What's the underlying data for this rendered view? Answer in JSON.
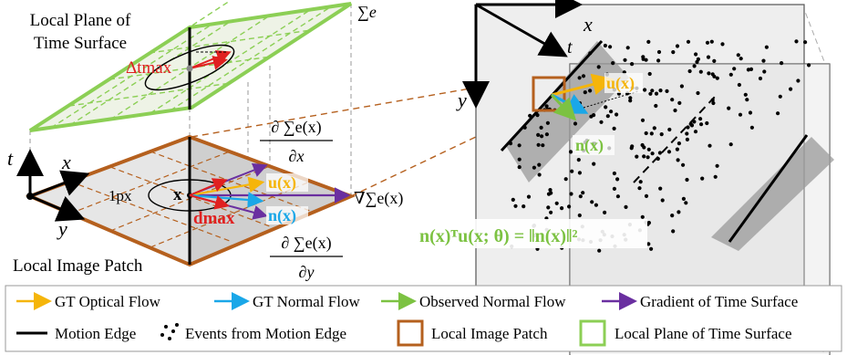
{
  "left_panel": {
    "plane_label_line1": "Local Plane of",
    "plane_label_line2": "Time Surface",
    "sigma_label": "∑e",
    "delta_t_max": "Δtmax",
    "patch_label": "Local Image Patch",
    "axis_t": "t",
    "axis_x": "x",
    "axis_y": "y",
    "one_px": "1px",
    "point_x": "x",
    "d_max": "dmax",
    "u_label": "u(x)",
    "n_label": "n(x)",
    "grad_label": "∇∑e(x)",
    "dsdx_num": "∂ ∑e(x)",
    "dsdx_den": "∂x",
    "dsdy_num": "∂ ∑e(x)",
    "dsdy_den": "∂y"
  },
  "right_panel": {
    "axis_x": "x",
    "axis_y": "y",
    "axis_t": "t",
    "u_label": "u(x)",
    "n_label": "n(x)",
    "equation": "n(x)ᵀu(x; θ) = ‖n(x)‖²"
  },
  "legend": {
    "items": [
      {
        "label": "GT Optical Flow",
        "icon": "orange-arrow-icon"
      },
      {
        "label": "GT Normal Flow",
        "icon": "cyan-arrow-icon"
      },
      {
        "label": "Observed Normal Flow",
        "icon": "green-arrow-icon"
      },
      {
        "label": "Gradient of Time Surface",
        "icon": "purple-arrow-icon"
      },
      {
        "label": "Motion Edge",
        "icon": "black-line-icon"
      },
      {
        "label": "Events from Motion Edge",
        "icon": "dots-icon"
      },
      {
        "label": "Local Image Patch",
        "icon": "brown-square-icon"
      },
      {
        "label": "Local Plane of Time Surface",
        "icon": "green-square-icon"
      }
    ]
  },
  "colors": {
    "optical_flow": "#f5b50a",
    "normal_flow": "#1aa7e8",
    "observed_flow": "#7cc242",
    "gradient": "#6a2fa0",
    "patch": "#b5601e",
    "plane": "#8ccf55",
    "delta": "#e02020"
  }
}
